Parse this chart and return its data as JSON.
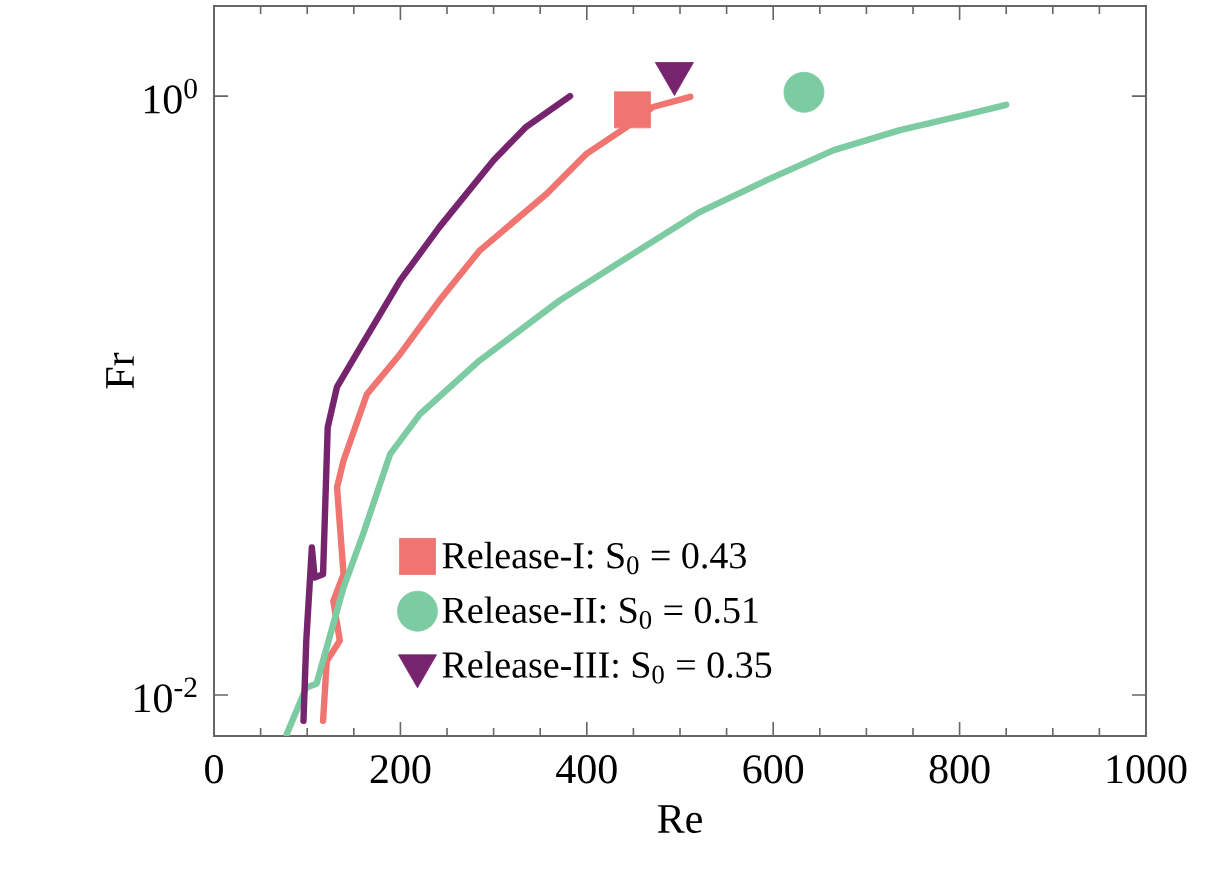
{
  "chart_data": {
    "type": "line",
    "xlabel": "Re",
    "ylabel": "Fr",
    "log": "y",
    "xlim": [
      0,
      1000
    ],
    "ylim": [
      0.0073,
      2
    ],
    "xticks": [
      0,
      200,
      400,
      600,
      800,
      1000
    ],
    "yticks": [
      {
        "value": 0.01,
        "label": "10$^{-2}$"
      },
      {
        "value": 1,
        "label": "10$^{0}$"
      }
    ],
    "grid": false,
    "legend": "bottom",
    "line_style": "solid",
    "series": [
      {
        "color": "#f07470",
        "x": [
          117,
          121,
          135,
          128,
          139,
          132,
          139,
          164,
          200,
          242,
          285,
          357,
          400,
          443,
          471,
          511
        ],
        "values": [
          0.0082,
          0.013,
          0.0152,
          0.0206,
          0.0253,
          0.0494,
          0.0607,
          0.101,
          0.138,
          0.208,
          0.305,
          0.472,
          0.643,
          0.79,
          0.92,
          0.995
        ]
      },
      {
        "color": "#7dcba2",
        "x": [
          78,
          99,
          110,
          139,
          160,
          189,
          221,
          285,
          371,
          450,
          521,
          593,
          665,
          736,
          807,
          850
        ],
        "values": [
          0.0074,
          0.0106,
          0.0109,
          0.0229,
          0.0345,
          0.0638,
          0.0867,
          0.131,
          0.208,
          0.298,
          0.41,
          0.524,
          0.66,
          0.77,
          0.867,
          0.935
        ]
      },
      {
        "color": "#77246f",
        "x": [
          96,
          99,
          105,
          108,
          117,
          122,
          132,
          157,
          200,
          242,
          300,
          335,
          382
        ],
        "values": [
          0.0082,
          0.0152,
          0.0311,
          0.0247,
          0.0253,
          0.0784,
          0.107,
          0.145,
          0.243,
          0.366,
          0.611,
          0.79,
          1.0
        ]
      },
      {
        "type": "scatter",
        "name": "Release-I: S$_{0}$ = 0.43",
        "color": "#f07470",
        "marker": "square",
        "x": [
          449
        ],
        "values": [
          0.9
        ]
      },
      {
        "type": "scatter",
        "name": "Release-II: S$_{0}$ = 0.51",
        "color": "#7dcba2",
        "marker": "circle",
        "x": [
          633
        ],
        "values": [
          1.03
        ]
      },
      {
        "type": "scatter",
        "name": "Release-III: S$_{0}$ = 0.35",
        "color": "#77246f",
        "marker": "triangle",
        "x": [
          494
        ],
        "values": [
          1.19
        ]
      }
    ]
  }
}
